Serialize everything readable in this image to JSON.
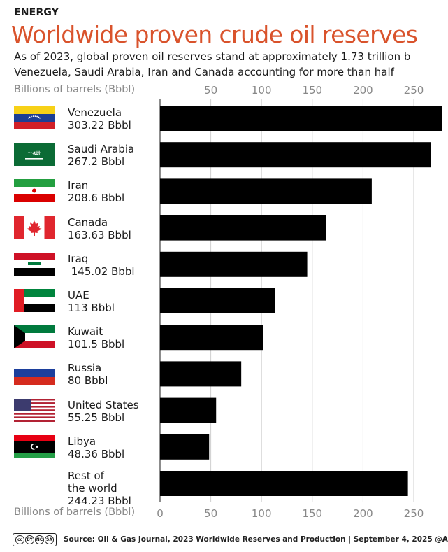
{
  "header": {
    "kicker": "ENERGY",
    "title": "Worldwide proven crude oil reserves",
    "subtitle": "As of 2023, global proven oil reserves stand at approximately 1.73 trillion b\nVenezuela, Saudi Arabia, Iran and Canada accounting for more than half"
  },
  "footer": {
    "source": "Source: Oil & Gas Journal, 2023 Worldwide Reserves and Production  |  September 4, 2025    @A"
  },
  "flags": [
    "venezuela-flag-icon",
    "saudi-arabia-flag-icon",
    "iran-flag-icon",
    "canada-flag-icon",
    "iraq-flag-icon",
    "uae-flag-icon",
    "kuwait-flag-icon",
    "russia-flag-icon",
    "united-states-flag-icon",
    "libya-flag-icon"
  ],
  "chart_data": {
    "type": "bar",
    "orientation": "horizontal",
    "xlabel": "Billions of barrels (Bbbl)",
    "xlim": [
      0,
      280
    ],
    "ticks_top": [
      50,
      100,
      150,
      200,
      250
    ],
    "ticks_bottom": [
      0,
      50,
      100,
      150,
      200,
      250
    ],
    "grid": true,
    "bar_color": "#000000",
    "categories": [
      "Venezuela",
      "Saudi Arabia",
      "Iran",
      "Canada",
      "Iraq",
      "UAE",
      "Kuwait",
      "Russia",
      "United States",
      "Libya",
      "Rest of the world"
    ],
    "labels": [
      "Venezuela\n303.22 Bbbl",
      "Saudi Arabia\n267.2 Bbbl",
      "Iran\n208.6 Bbbl",
      "Canada\n163.63 Bbbl",
      "Iraq\n 145.02 Bbbl",
      "UAE\n113 Bbbl",
      "Kuwait\n101.5 Bbbl",
      "Russia\n80 Bbbl",
      "United States\n55.25 Bbbl",
      "Libya\n48.36 Bbbl",
      "Rest of\nthe world\n244.23 Bbbl"
    ],
    "values": [
      303.22,
      267.2,
      208.6,
      163.63,
      145.02,
      113,
      101.5,
      80,
      55.25,
      48.36,
      244.23
    ]
  }
}
